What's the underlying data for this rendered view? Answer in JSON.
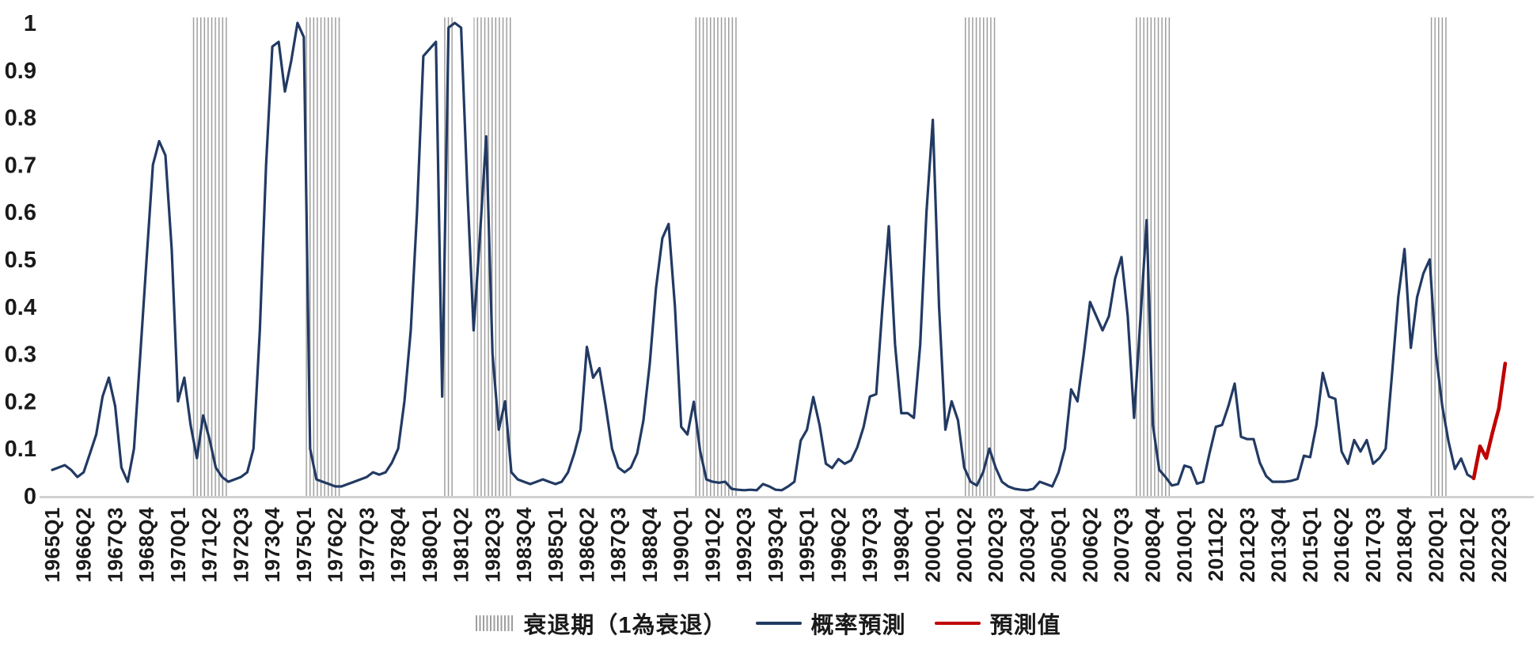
{
  "chart_data": {
    "type": "line",
    "title": "",
    "grid": false,
    "legend_position": "bottom-center",
    "y_axis": {
      "min": 0,
      "max": 1,
      "tick_labels": [
        "0",
        "0.1",
        "0.2",
        "0.3",
        "0.4",
        "0.5",
        "0.6",
        "0.7",
        "0.8",
        "0.9",
        "1"
      ]
    },
    "x_axis": {
      "start_quarter": "1965Q1",
      "quarters_per_tick": 5,
      "tick_labels": [
        "1965Q1",
        "1966Q2",
        "1967Q3",
        "1968Q4",
        "1970Q1",
        "1971Q2",
        "1972Q3",
        "1973Q4",
        "1975Q1",
        "1976Q2",
        "1977Q3",
        "1978Q4",
        "1980Q1",
        "1981Q2",
        "1982Q3",
        "1983Q4",
        "1985Q1",
        "1986Q2",
        "1987Q3",
        "1988Q4",
        "1990Q1",
        "1991Q2",
        "1992Q3",
        "1993Q4",
        "1995Q1",
        "1996Q2",
        "1997Q3",
        "1998Q4",
        "2000Q1",
        "2001Q2",
        "2002Q3",
        "2003Q4",
        "2005Q1",
        "2006Q2",
        "2007Q3",
        "2008Q4",
        "2010Q1",
        "2011Q2",
        "2012Q3",
        "2013Q4",
        "2015Q1",
        "2016Q2",
        "2017Q3",
        "2018Q4",
        "2020Q1",
        "2021Q2",
        "2022Q3"
      ]
    },
    "series": [
      {
        "name": "概率預測",
        "color": "#223a63",
        "start_index": 0,
        "values": [
          0.055,
          0.06,
          0.065,
          0.055,
          0.04,
          0.05,
          0.09,
          0.13,
          0.21,
          0.25,
          0.19,
          0.06,
          0.03,
          0.1,
          0.3,
          0.5,
          0.7,
          0.75,
          0.72,
          0.52,
          0.2,
          0.25,
          0.15,
          0.08,
          0.17,
          0.12,
          0.06,
          0.04,
          0.03,
          0.035,
          0.04,
          0.05,
          0.1,
          0.35,
          0.7,
          0.95,
          0.96,
          0.855,
          0.92,
          1.0,
          0.97,
          0.1,
          0.035,
          0.03,
          0.025,
          0.02,
          0.02,
          0.025,
          0.03,
          0.035,
          0.04,
          0.05,
          0.045,
          0.05,
          0.07,
          0.1,
          0.2,
          0.35,
          0.6,
          0.93,
          0.945,
          0.96,
          0.21,
          0.99,
          1.0,
          0.99,
          0.65,
          0.35,
          0.55,
          0.76,
          0.3,
          0.14,
          0.2,
          0.05,
          0.035,
          0.03,
          0.025,
          0.03,
          0.035,
          0.03,
          0.025,
          0.03,
          0.05,
          0.09,
          0.14,
          0.315,
          0.25,
          0.27,
          0.19,
          0.1,
          0.06,
          0.05,
          0.06,
          0.09,
          0.16,
          0.28,
          0.44,
          0.545,
          0.575,
          0.4,
          0.146,
          0.13,
          0.199,
          0.096,
          0.035,
          0.03,
          0.028,
          0.03,
          0.015,
          0.013,
          0.012,
          0.013,
          0.012,
          0.025,
          0.02,
          0.013,
          0.012,
          0.02,
          0.03,
          0.117,
          0.14,
          0.209,
          0.15,
          0.068,
          0.059,
          0.078,
          0.068,
          0.075,
          0.103,
          0.146,
          0.21,
          0.215,
          0.4,
          0.57,
          0.32,
          0.175,
          0.175,
          0.165,
          0.32,
          0.6,
          0.795,
          0.4,
          0.14,
          0.2,
          0.16,
          0.06,
          0.03,
          0.022,
          0.05,
          0.1,
          0.06,
          0.03,
          0.02,
          0.015,
          0.013,
          0.012,
          0.015,
          0.03,
          0.025,
          0.02,
          0.05,
          0.1,
          0.225,
          0.2,
          0.3,
          0.41,
          0.38,
          0.35,
          0.38,
          0.46,
          0.505,
          0.38,
          0.165,
          0.37,
          0.583,
          0.15,
          0.055,
          0.04,
          0.022,
          0.025,
          0.064,
          0.06,
          0.026,
          0.03,
          0.09,
          0.146,
          0.15,
          0.19,
          0.2375,
          0.125,
          0.12,
          0.12,
          0.07,
          0.042,
          0.03,
          0.03,
          0.03,
          0.032,
          0.036,
          0.085,
          0.082,
          0.15,
          0.26,
          0.21,
          0.205,
          0.094,
          0.068,
          0.118,
          0.094,
          0.118,
          0.068,
          0.08,
          0.1,
          0.255,
          0.42,
          0.522,
          0.313,
          0.42,
          0.47,
          0.5,
          0.3,
          0.19,
          0.115,
          0.057,
          0.079,
          0.045,
          0.037
        ]
      },
      {
        "name": "預測值",
        "color": "#c00000",
        "start_index": 226,
        "values": [
          0.037,
          0.105,
          0.08,
          0.135,
          0.185,
          0.28
        ]
      }
    ],
    "recession_bands": {
      "label": "衰退期（1為衰退）",
      "color": "#9e9e9e",
      "index_ranges": [
        [
          22,
          28
        ],
        [
          40,
          46
        ],
        [
          62,
          64
        ],
        [
          67,
          73
        ],
        [
          102,
          109
        ],
        [
          145,
          150
        ],
        [
          172,
          178
        ],
        [
          219,
          222
        ]
      ]
    },
    "axis_line_color": "#c9c9c9",
    "text_color": "#1a1a1a"
  }
}
